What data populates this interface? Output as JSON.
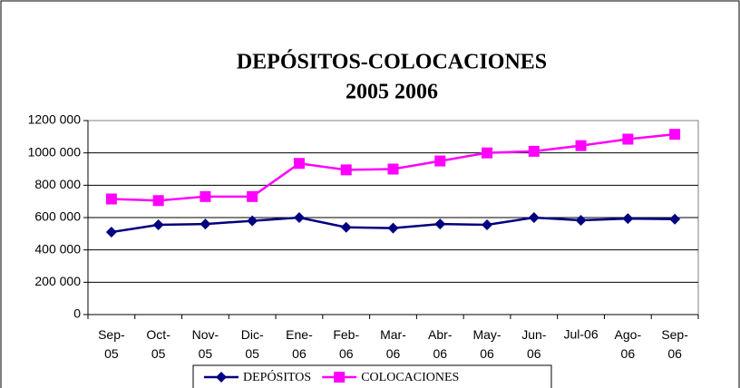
{
  "chart_data": {
    "type": "line",
    "title": "DEPÓSITOS-COLOCACIONES",
    "subtitle": "2005 2006",
    "categories": [
      "Sep-05",
      "Oct-05",
      "Nov-05",
      "Dic-05",
      "Ene-06",
      "Feb-06",
      "Mar-06",
      "Abr-06",
      "May-06",
      "Jun-06",
      "Jul-06",
      "Ago-06",
      "Sep-06"
    ],
    "series": [
      {
        "name": "DEPÓSITOS",
        "color": "#000080",
        "marker": "diamond",
        "values": [
          510000,
          555000,
          560000,
          580000,
          600000,
          540000,
          535000,
          560000,
          555000,
          600000,
          583000,
          594000,
          590000
        ]
      },
      {
        "name": "COLOCACIONES",
        "color": "#ff00ff",
        "marker": "square",
        "values": [
          715000,
          705000,
          730000,
          730000,
          935000,
          895000,
          900000,
          950000,
          1000000,
          1010000,
          1045000,
          1085000,
          1115000
        ]
      }
    ],
    "ylim": [
      0,
      1200000
    ],
    "yticks": [
      {
        "value": 0,
        "label": "0"
      },
      {
        "value": 200000,
        "label": "200 000"
      },
      {
        "value": 400000,
        "label": "400 000"
      },
      {
        "value": 600000,
        "label": "600 000"
      },
      {
        "value": 800000,
        "label": "800 000"
      },
      {
        "value": 1000000,
        "label": "1000 000"
      },
      {
        "value": 1200000,
        "label": "1200 000"
      }
    ],
    "grid": true,
    "legend": "bottom"
  }
}
